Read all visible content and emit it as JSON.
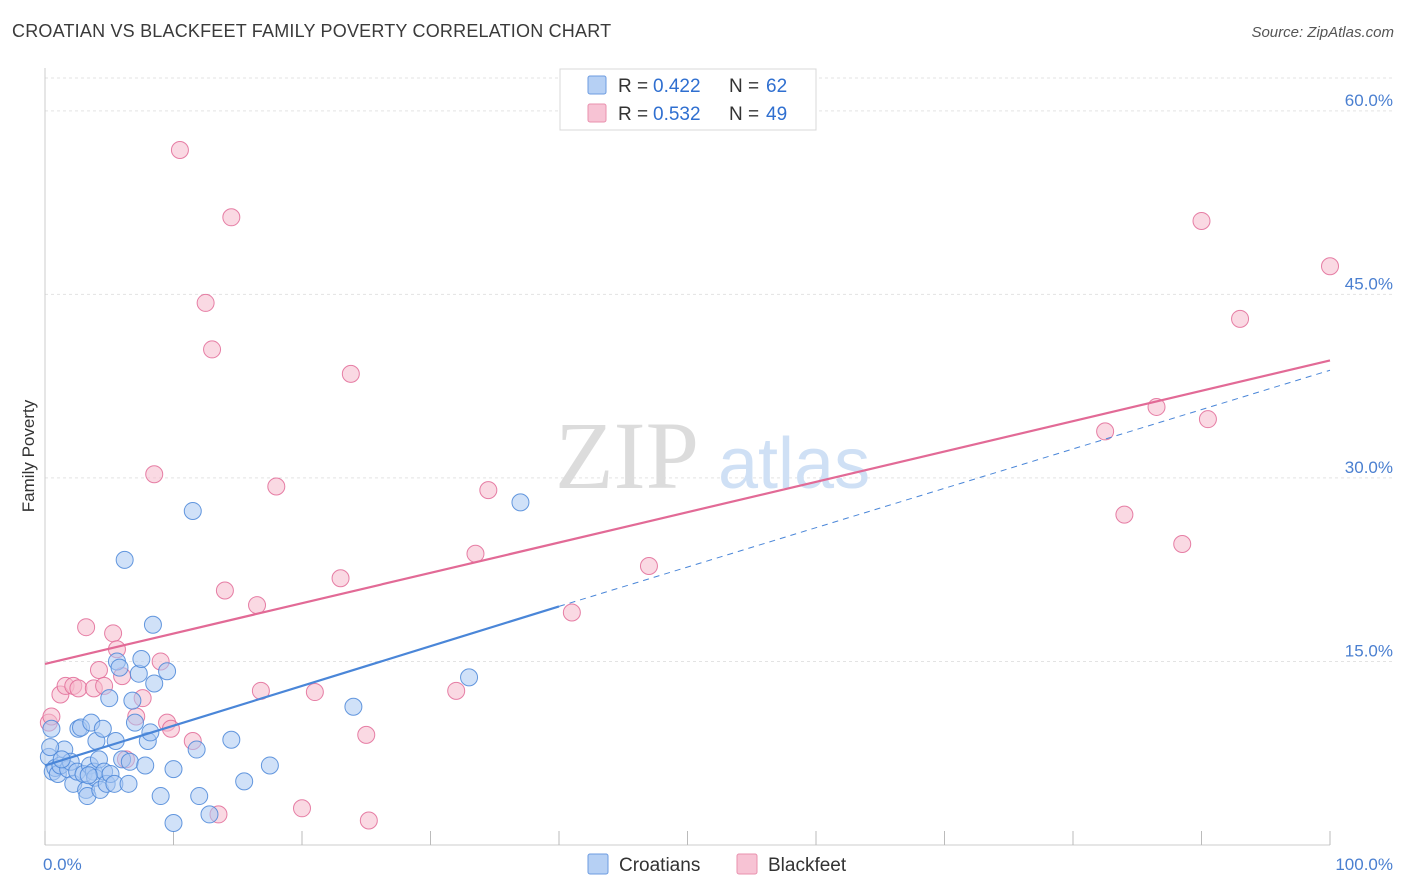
{
  "header": {
    "title": "CROATIAN VS BLACKFEET FAMILY POVERTY CORRELATION CHART",
    "source": "Source: ZipAtlas.com"
  },
  "watermark": {
    "zip": "ZIP",
    "atlas": "atlas"
  },
  "legend": {
    "r_label": "R =",
    "n_label": "N =",
    "rows": [
      {
        "r": "0.422",
        "n": "62",
        "color": "#a9c8f2"
      },
      {
        "r": "0.532",
        "n": "49",
        "color": "#f6b9cc"
      }
    ]
  },
  "bottom_legend": [
    {
      "label": "Croatians",
      "color": "#a9c8f2"
    },
    {
      "label": "Blackfeet",
      "color": "#f6b9cc"
    }
  ],
  "chart_data": {
    "type": "scatter",
    "title": "CROATIAN VS BLACKFEET FAMILY POVERTY CORRELATION CHART",
    "xlabel": "",
    "ylabel": "Family Poverty",
    "xlim": [
      0,
      100
    ],
    "ylim": [
      0,
      63.5
    ],
    "y_ticks": [
      {
        "value": 15,
        "label": "15.0%"
      },
      {
        "value": 30,
        "label": "30.0%"
      },
      {
        "value": 45,
        "label": "45.0%"
      },
      {
        "value": 60,
        "label": "60.0%"
      }
    ],
    "x_tick_labels": [
      {
        "value": 0,
        "label": "0.0%"
      },
      {
        "value": 100,
        "label": "100.0%"
      }
    ],
    "x_minor_ticks": [
      0,
      10,
      20,
      30,
      40,
      50,
      60,
      70,
      80,
      90,
      100
    ],
    "grid": true,
    "series": [
      {
        "name": "Croatians",
        "color": "#4a86d8",
        "fill": "#a9c8f2",
        "r": 0.422,
        "n": 62,
        "trend": {
          "x0": 0,
          "y0": 6.5,
          "x1": 40,
          "y1": 19.5,
          "dashed_to": {
            "x": 100,
            "y": 38.8
          }
        },
        "points": [
          [
            0.5,
            9.5
          ],
          [
            0.3,
            7.2
          ],
          [
            0.6,
            6.0
          ],
          [
            0.8,
            6.3
          ],
          [
            1.0,
            5.8
          ],
          [
            1.2,
            6.5
          ],
          [
            1.5,
            7.8
          ],
          [
            1.8,
            6.2
          ],
          [
            2.0,
            6.8
          ],
          [
            2.2,
            5.0
          ],
          [
            2.5,
            6.0
          ],
          [
            2.6,
            9.5
          ],
          [
            2.8,
            9.6
          ],
          [
            3.0,
            5.8
          ],
          [
            3.2,
            4.5
          ],
          [
            3.3,
            4.0
          ],
          [
            3.5,
            6.5
          ],
          [
            3.6,
            10.0
          ],
          [
            3.8,
            6.0
          ],
          [
            3.9,
            5.5
          ],
          [
            4.0,
            8.5
          ],
          [
            4.2,
            7.0
          ],
          [
            4.3,
            4.5
          ],
          [
            4.5,
            9.5
          ],
          [
            4.6,
            6.0
          ],
          [
            4.8,
            5.0
          ],
          [
            5.0,
            12.0
          ],
          [
            5.1,
            5.8
          ],
          [
            5.4,
            5.0
          ],
          [
            5.5,
            8.5
          ],
          [
            5.6,
            15.0
          ],
          [
            5.8,
            14.5
          ],
          [
            6.0,
            7.0
          ],
          [
            6.2,
            23.3
          ],
          [
            6.5,
            5.0
          ],
          [
            6.6,
            6.8
          ],
          [
            7.0,
            10.0
          ],
          [
            7.3,
            14.0
          ],
          [
            7.5,
            15.2
          ],
          [
            7.8,
            6.5
          ],
          [
            8.0,
            8.5
          ],
          [
            8.2,
            9.2
          ],
          [
            8.4,
            18.0
          ],
          [
            8.5,
            13.2
          ],
          [
            9.0,
            4.0
          ],
          [
            9.5,
            14.2
          ],
          [
            10.0,
            6.2
          ],
          [
            10.0,
            1.8
          ],
          [
            11.5,
            27.3
          ],
          [
            11.8,
            7.8
          ],
          [
            12.0,
            4.0
          ],
          [
            12.8,
            2.5
          ],
          [
            14.5,
            8.6
          ],
          [
            15.5,
            5.2
          ],
          [
            17.5,
            6.5
          ],
          [
            24.0,
            11.3
          ],
          [
            33.0,
            13.7
          ],
          [
            37.0,
            28.0
          ],
          [
            0.4,
            8.0
          ],
          [
            1.3,
            7.0
          ],
          [
            6.8,
            11.8
          ],
          [
            3.4,
            5.7
          ]
        ]
      },
      {
        "name": "Blackfeet",
        "color": "#e26a96",
        "fill": "#f6b9cc",
        "r": 0.532,
        "n": 49,
        "trend": {
          "x0": 0,
          "y0": 14.8,
          "x1": 100,
          "y1": 39.6
        },
        "points": [
          [
            0.3,
            10.0
          ],
          [
            0.5,
            10.5
          ],
          [
            1.2,
            12.3
          ],
          [
            1.6,
            13.0
          ],
          [
            2.2,
            13.0
          ],
          [
            2.6,
            12.8
          ],
          [
            3.2,
            17.8
          ],
          [
            3.8,
            12.8
          ],
          [
            4.2,
            14.3
          ],
          [
            4.6,
            13.0
          ],
          [
            5.3,
            17.3
          ],
          [
            5.6,
            16.0
          ],
          [
            6.0,
            13.8
          ],
          [
            6.3,
            7.0
          ],
          [
            7.1,
            10.5
          ],
          [
            7.6,
            12.0
          ],
          [
            8.5,
            30.3
          ],
          [
            9.0,
            15.0
          ],
          [
            9.5,
            10.0
          ],
          [
            9.8,
            9.5
          ],
          [
            10.5,
            56.8
          ],
          [
            11.5,
            8.5
          ],
          [
            12.5,
            44.3
          ],
          [
            13.0,
            40.5
          ],
          [
            13.5,
            2.5
          ],
          [
            14.0,
            20.8
          ],
          [
            14.5,
            51.3
          ],
          [
            16.5,
            19.6
          ],
          [
            16.8,
            12.6
          ],
          [
            18.0,
            29.3
          ],
          [
            20.0,
            3.0
          ],
          [
            21.0,
            12.5
          ],
          [
            23.0,
            21.8
          ],
          [
            23.8,
            38.5
          ],
          [
            25.0,
            9.0
          ],
          [
            25.2,
            2.0
          ],
          [
            32.0,
            12.6
          ],
          [
            33.5,
            23.8
          ],
          [
            34.5,
            29.0
          ],
          [
            41.0,
            19.0
          ],
          [
            47.0,
            22.8
          ],
          [
            82.5,
            33.8
          ],
          [
            84.0,
            27.0
          ],
          [
            86.5,
            35.8
          ],
          [
            88.5,
            24.6
          ],
          [
            90.0,
            51.0
          ],
          [
            90.5,
            34.8
          ],
          [
            93.0,
            43.0
          ],
          [
            100.0,
            47.3
          ]
        ]
      }
    ]
  }
}
